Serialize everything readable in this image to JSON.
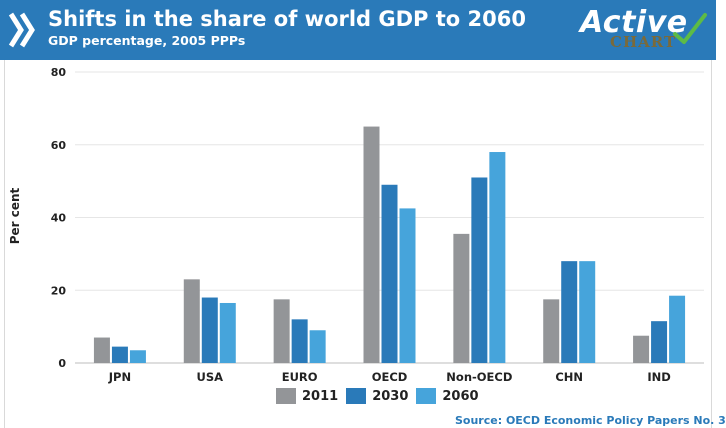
{
  "header": {
    "title": "Shifts in the share of world GDP to 2060",
    "subtitle": "GDP percentage, 2005 PPPs",
    "brand_main": "Active",
    "brand_sub": "CHART"
  },
  "colors": {
    "header_bg": "#2a7ab9",
    "series_2011": "#939598",
    "series_2030": "#2a7ab9",
    "series_2060": "#46a4db",
    "grid": "#e6e6e6"
  },
  "chart_data": {
    "type": "bar",
    "title": "Shifts in the share of world GDP to 2060",
    "subtitle": "GDP percentage, 2005 PPPs",
    "xlabel": "",
    "ylabel": "Per cent",
    "ylim": [
      0,
      80
    ],
    "yticks": [
      0,
      20,
      40,
      60,
      80
    ],
    "grid": true,
    "legend_position": "bottom",
    "categories": [
      "JPN",
      "USA",
      "EURO",
      "OECD",
      "Non-OECD",
      "CHN",
      "IND"
    ],
    "series": [
      {
        "name": "2011",
        "color": "#939598",
        "values": [
          7,
          23,
          17.5,
          65,
          35.5,
          17.5,
          7.5
        ]
      },
      {
        "name": "2030",
        "color": "#2a7ab9",
        "values": [
          4.5,
          18,
          12,
          49,
          51,
          28,
          11.5
        ]
      },
      {
        "name": "2060",
        "color": "#46a4db",
        "values": [
          3.5,
          16.5,
          9,
          42.5,
          58,
          28,
          18.5
        ]
      }
    ]
  },
  "footer": {
    "source": "Source: OECD Economic Policy Papers No. 3"
  }
}
